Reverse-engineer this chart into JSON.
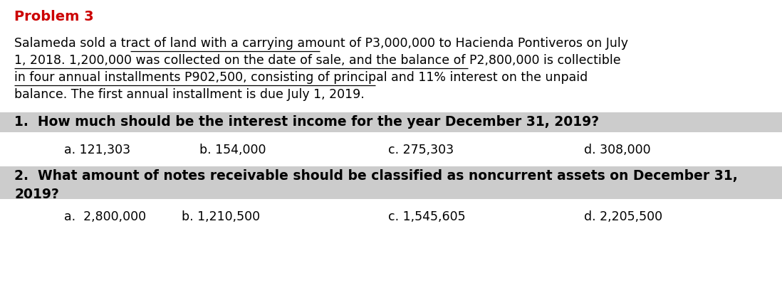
{
  "title": "Problem 3",
  "title_color": "#CC0000",
  "background_color": "#FFFFFF",
  "para_lines": [
    "Salameda sold a tract of land with a carrying amount of P3,000,000 to Hacienda Pontiveros on July",
    "1, 2018. 1,200,000 was collected on the date of sale, and the balance of P2,800,000 is collectible",
    "in four annual installments P902,500, consisting of principal and 11% interest on the unpaid",
    "balance. The first annual installment is due July 1, 2019."
  ],
  "q1_header": "1.  How much should be the interest income for the year December 31, 2019?",
  "q1_choices": [
    "a. 121,303",
    "b. 154,000",
    "c. 275,303",
    "d. 308,000"
  ],
  "q2_line1": "2.  What amount of notes receivable should be classified as noncurrent assets on December 31,",
  "q2_line2": "2019?",
  "q2_choices": [
    "a.  2,800,000",
    "b. 1,210,500",
    "c. 1,545,605",
    "d. 2,205,500"
  ],
  "header_bg": "#CCCCCC",
  "body_fontsize": 12.5,
  "header_fontsize": 13.5,
  "title_fontsize": 14
}
